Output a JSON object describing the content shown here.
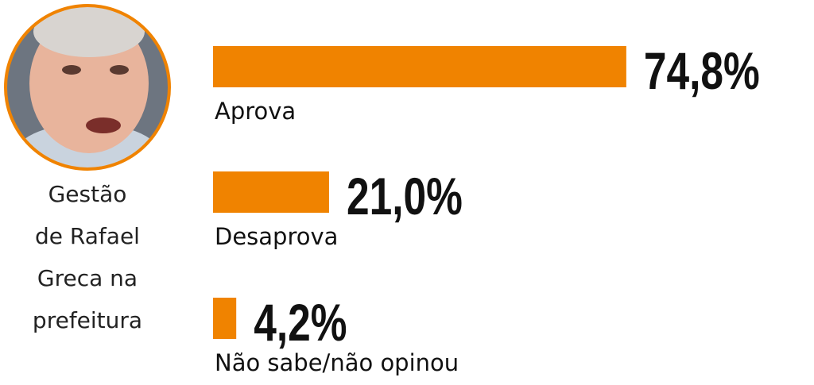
{
  "chart_data": {
    "type": "bar",
    "caption": [
      "Gestão",
      "de Rafael",
      "Greca na",
      "prefeitura"
    ],
    "categories": [
      "Aprova",
      "Desaprova",
      "Não sabe/não opinou"
    ],
    "values": [
      74.8,
      21.0,
      4.2
    ],
    "value_labels": [
      "74,8%",
      "21,0%",
      "4,2%"
    ],
    "color": "#f08300"
  }
}
